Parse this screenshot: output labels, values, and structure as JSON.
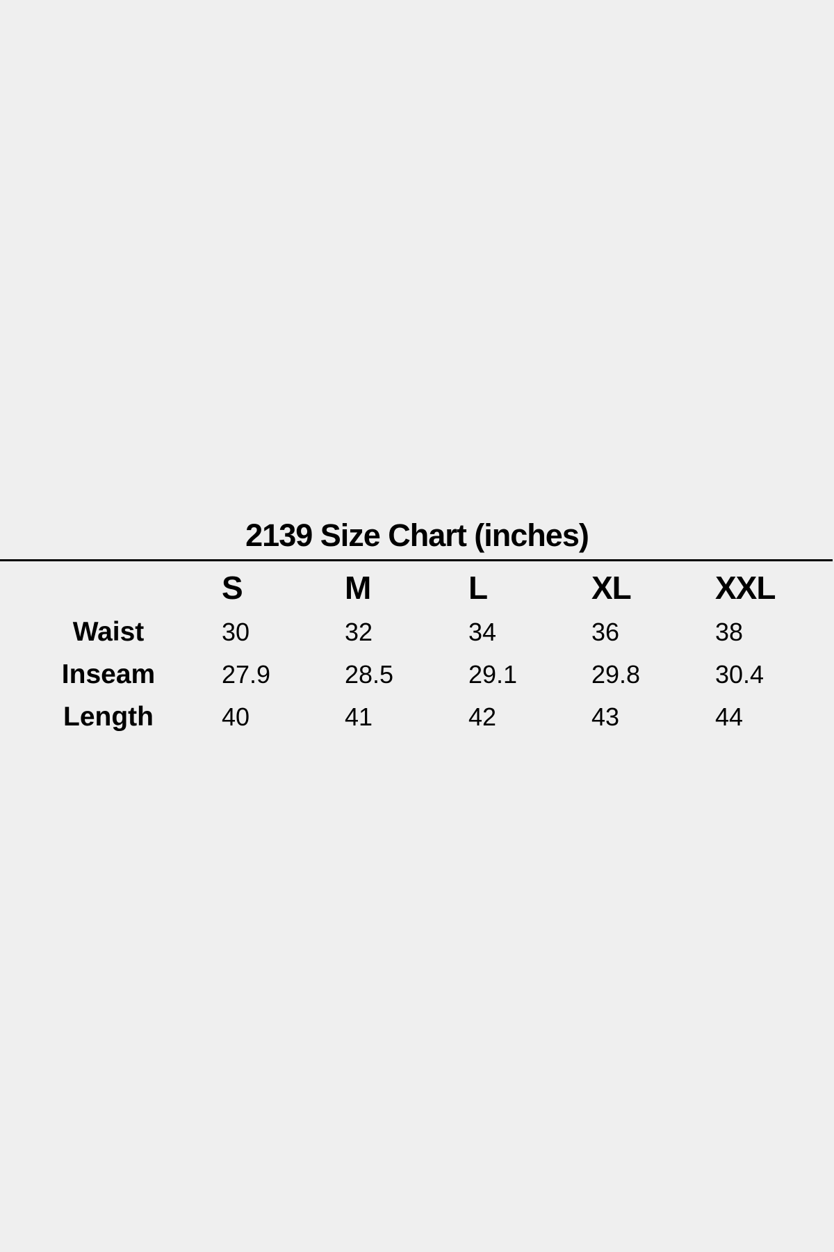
{
  "title": "2139 Size Chart (inches)",
  "table": {
    "columns": [
      "S",
      "M",
      "L",
      "XL",
      "XXL"
    ],
    "rows": [
      {
        "label": "Waist",
        "values": [
          "30",
          "32",
          "34",
          "36",
          "38"
        ]
      },
      {
        "label": "Inseam",
        "values": [
          "27.9",
          "28.5",
          "29.1",
          "29.8",
          "30.4"
        ]
      },
      {
        "label": "Length",
        "values": [
          "40",
          "41",
          "42",
          "43",
          "44"
        ]
      }
    ]
  }
}
